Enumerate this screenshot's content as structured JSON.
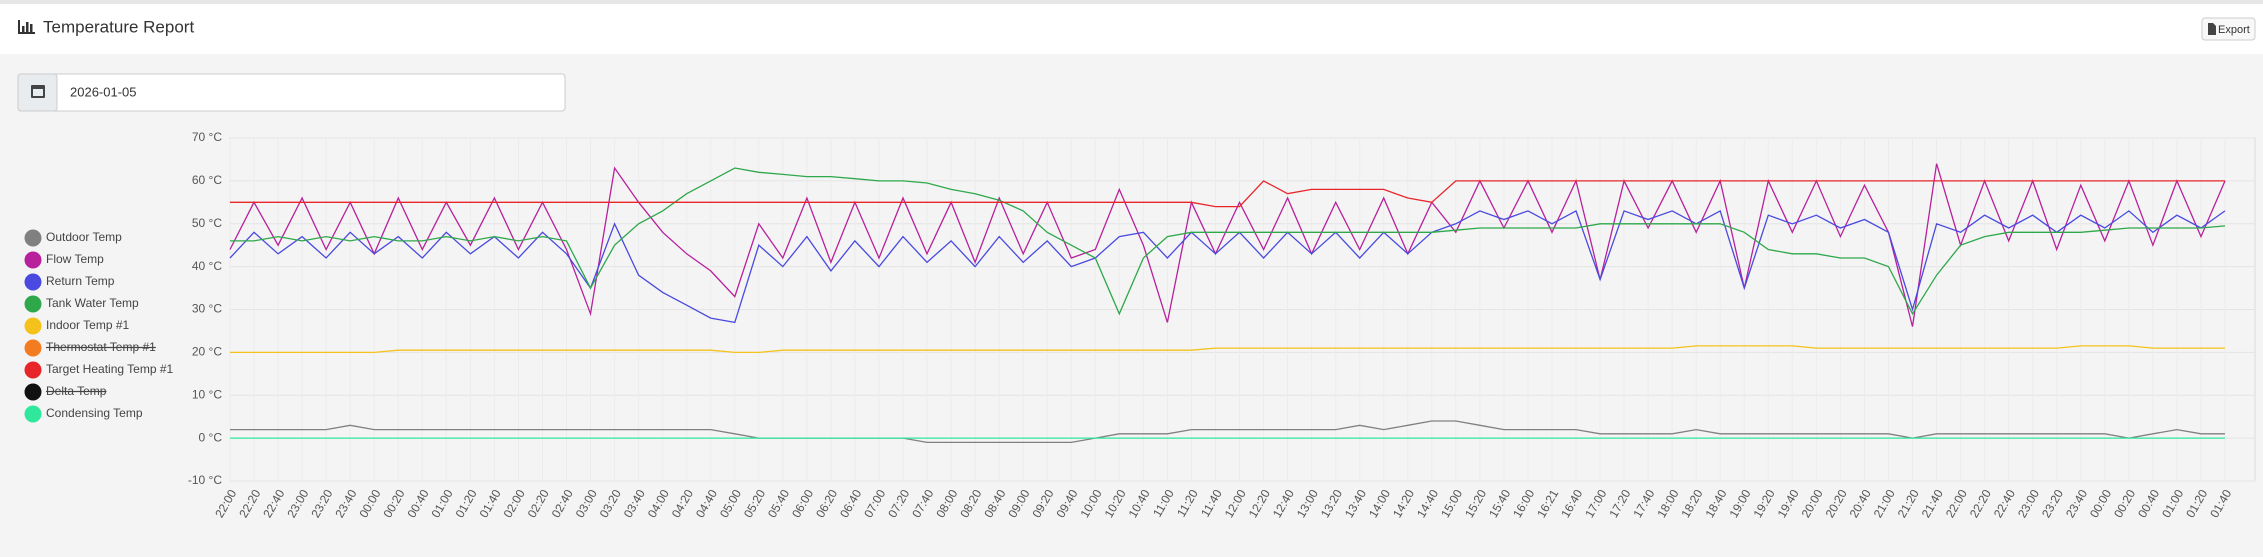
{
  "header": {
    "title": "Temperature Report",
    "export": "Export"
  },
  "date": "2026-01-05",
  "chart_data": {
    "type": "line",
    "categories": [
      "22:00",
      "22:20",
      "22:40",
      "23:00",
      "23:20",
      "23:40",
      "00:00",
      "00:20",
      "00:40",
      "01:00",
      "01:20",
      "01:40",
      "02:00",
      "02:20",
      "02:40",
      "03:00",
      "03:20",
      "03:40",
      "04:00",
      "04:20",
      "04:40",
      "05:00",
      "05:20",
      "05:40",
      "06:00",
      "06:20",
      "06:40",
      "07:00",
      "07:20",
      "07:40",
      "08:00",
      "08:20",
      "08:40",
      "09:00",
      "09:20",
      "09:40",
      "10:00",
      "10:20",
      "10:40",
      "11:00",
      "11:20",
      "11:40",
      "12:00",
      "12:20",
      "12:40",
      "13:00",
      "13:20",
      "13:40",
      "14:00",
      "14:20",
      "14:40",
      "15:00",
      "15:20",
      "15:40",
      "16:00",
      "16:21",
      "16:40",
      "17:00",
      "17:20",
      "17:40",
      "18:00",
      "18:20",
      "18:40",
      "19:00",
      "19:20",
      "19:40",
      "20:00",
      "20:20",
      "20:40",
      "21:00",
      "21:20",
      "21:40",
      "22:00",
      "22:20",
      "22:40",
      "23:00",
      "23:20",
      "23:40",
      "00:00",
      "00:20",
      "00:40",
      "01:00",
      "01:20",
      "01:40"
    ],
    "ylim": [
      -10,
      70
    ],
    "yticks": [
      {
        "value": -10,
        "label": "-10 °C"
      },
      {
        "value": 0,
        "label": "0 °C"
      },
      {
        "value": 10,
        "label": "10 °C"
      },
      {
        "value": 20,
        "label": "20 °C"
      },
      {
        "value": 30,
        "label": "30 °C"
      },
      {
        "value": 40,
        "label": "40 °C"
      },
      {
        "value": 50,
        "label": "50 °C"
      },
      {
        "value": 60,
        "label": "60 °C"
      },
      {
        "value": 70,
        "label": "70 °C"
      }
    ],
    "grid": true,
    "legend": "left",
    "series": [
      {
        "name": "Outdoor Temp",
        "color": "#808080",
        "values": [
          2,
          2,
          2,
          2,
          2,
          3,
          2,
          2,
          2,
          2,
          2,
          2,
          2,
          2,
          2,
          2,
          2,
          2,
          2,
          2,
          2,
          1,
          0,
          0,
          0,
          0,
          0,
          0,
          0,
          -1,
          -1,
          -1,
          -1,
          -1,
          -1,
          -1,
          0,
          1,
          1,
          1,
          2,
          2,
          2,
          2,
          2,
          2,
          2,
          3,
          2,
          3,
          4,
          4,
          3,
          2,
          2,
          2,
          2,
          1,
          1,
          1,
          1,
          2,
          1,
          1,
          1,
          1,
          1,
          1,
          1,
          1,
          0,
          1,
          1,
          1,
          1,
          1,
          1,
          1,
          1,
          0,
          1,
          2,
          1,
          1
        ]
      },
      {
        "name": "Flow Temp",
        "color": "#b8209c",
        "values": [
          44,
          55,
          45,
          56,
          44,
          55,
          43,
          56,
          44,
          55,
          45,
          56,
          44,
          55,
          44,
          29,
          63,
          55,
          48,
          43,
          39,
          33,
          50,
          42,
          56,
          41,
          55,
          42,
          56,
          43,
          55,
          41,
          56,
          43,
          55,
          42,
          44,
          58,
          45,
          27,
          55,
          43,
          55,
          44,
          56,
          43,
          55,
          44,
          56,
          43,
          55,
          48,
          60,
          49,
          60,
          48,
          60,
          37,
          60,
          49,
          60,
          48,
          60,
          35,
          60,
          48,
          60,
          47,
          59,
          48,
          26,
          64,
          45,
          60,
          46,
          60,
          44,
          59,
          46,
          60,
          45,
          60,
          47,
          60
        ]
      },
      {
        "name": "Return Temp",
        "color": "#4a4ae0",
        "values": [
          42,
          48,
          43,
          47,
          42,
          48,
          43,
          47,
          42,
          48,
          43,
          47,
          42,
          48,
          43,
          35,
          50,
          38,
          34,
          31,
          28,
          27,
          45,
          40,
          47,
          39,
          46,
          40,
          47,
          41,
          46,
          40,
          47,
          41,
          46,
          40,
          42,
          47,
          48,
          42,
          48,
          43,
          48,
          42,
          48,
          43,
          48,
          42,
          48,
          43,
          48,
          50,
          53,
          51,
          53,
          50,
          53,
          37,
          53,
          51,
          53,
          50,
          53,
          35,
          52,
          50,
          52,
          49,
          51,
          48,
          30,
          50,
          48,
          52,
          49,
          52,
          48,
          52,
          49,
          53,
          48,
          52,
          49,
          53
        ]
      },
      {
        "name": "Tank Water Temp",
        "color": "#2ea84a",
        "values": [
          46,
          46,
          47,
          46,
          47,
          46,
          47,
          46,
          46,
          47,
          46,
          47,
          46,
          47,
          46,
          35,
          45,
          50,
          53,
          57,
          60,
          63,
          62,
          61.5,
          61,
          61,
          60.5,
          60,
          60,
          59.5,
          58,
          57,
          55.5,
          53,
          48,
          45,
          42,
          29,
          42,
          47,
          48,
          48,
          48,
          48,
          48,
          48,
          48,
          48,
          48,
          48,
          48,
          48.5,
          49,
          49,
          49,
          49,
          49,
          50,
          50,
          50,
          50,
          50,
          50,
          48,
          44,
          43,
          43,
          42,
          42,
          40,
          29,
          38,
          45,
          47,
          48,
          48,
          48,
          48,
          48.5,
          49,
          49,
          49,
          49,
          49.5
        ]
      },
      {
        "name": "Indoor Temp #1",
        "color": "#f5c21b",
        "values": [
          20,
          20,
          20,
          20,
          20,
          20,
          20,
          20.5,
          20.5,
          20.5,
          20.5,
          20.5,
          20.5,
          20.5,
          20.5,
          20.5,
          20.5,
          20.5,
          20.5,
          20.5,
          20.5,
          20,
          20,
          20.5,
          20.5,
          20.5,
          20.5,
          20.5,
          20.5,
          20.5,
          20.5,
          20.5,
          20.5,
          20.5,
          20.5,
          20.5,
          20.5,
          20.5,
          20.5,
          20.5,
          20.5,
          21,
          21,
          21,
          21,
          21,
          21,
          21,
          21,
          21,
          21,
          21,
          21,
          21,
          21,
          21,
          21,
          21,
          21,
          21,
          21,
          21.5,
          21.5,
          21.5,
          21.5,
          21.5,
          21,
          21,
          21,
          21,
          21,
          21,
          21,
          21,
          21,
          21,
          21,
          21.5,
          21.5,
          21.5,
          21,
          21,
          21,
          21
        ]
      },
      {
        "name": "Thermostat Temp #1",
        "color": "#f47c20",
        "hidden": true
      },
      {
        "name": "Target Heating Temp #1",
        "color": "#e8262a",
        "values": [
          55,
          55,
          55,
          55,
          55,
          55,
          55,
          55,
          55,
          55,
          55,
          55,
          55,
          55,
          55,
          55,
          55,
          55,
          55,
          55,
          55,
          55,
          55,
          55,
          55,
          55,
          55,
          55,
          55,
          55,
          55,
          55,
          55,
          55,
          55,
          55,
          55,
          55,
          55,
          55,
          55,
          54,
          54,
          60,
          57,
          58,
          58,
          58,
          58,
          56,
          55,
          60,
          60,
          60,
          60,
          60,
          60,
          60,
          60,
          60,
          60,
          60,
          60,
          60,
          60,
          60,
          60,
          60,
          60,
          60,
          60,
          60,
          60,
          60,
          60,
          60,
          60,
          60,
          60,
          60,
          60,
          60,
          60,
          60
        ]
      },
      {
        "name": "Delta Temp",
        "color": "#111111",
        "hidden": true
      },
      {
        "name": "Condensing Temp",
        "color": "#2fe89c",
        "values": [
          0,
          0,
          0,
          0,
          0,
          0,
          0,
          0,
          0,
          0,
          0,
          0,
          0,
          0,
          0,
          0,
          0,
          0,
          0,
          0,
          0,
          0,
          0,
          0,
          0,
          0,
          0,
          0,
          0,
          0,
          0,
          0,
          0,
          0,
          0,
          0,
          0,
          0,
          0,
          0,
          0,
          0,
          0,
          0,
          0,
          0,
          0,
          0,
          0,
          0,
          0,
          0,
          0,
          0,
          0,
          0,
          0,
          0,
          0,
          0,
          0,
          0,
          0,
          0,
          0,
          0,
          0,
          0,
          0,
          0,
          0,
          0,
          0,
          0,
          0,
          0,
          0,
          0,
          0,
          0,
          0,
          0,
          0,
          0
        ]
      }
    ]
  }
}
